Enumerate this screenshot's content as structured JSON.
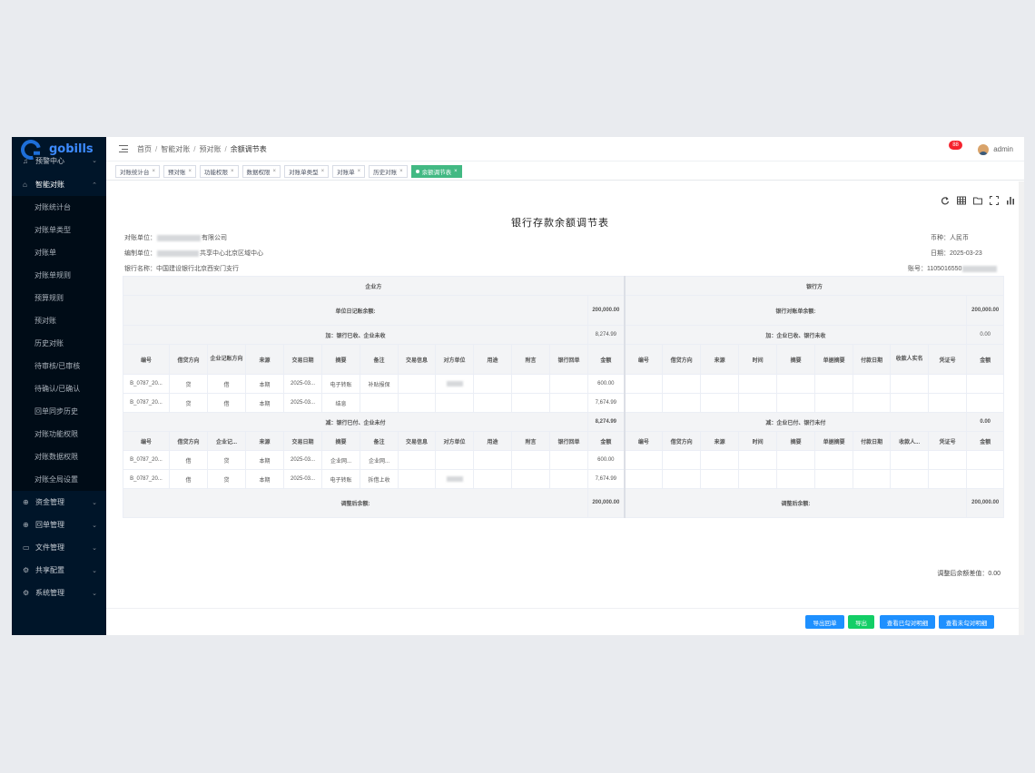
{
  "app": {
    "logo_text": "gobills"
  },
  "sidebar": {
    "first_item": {
      "label": "预警中心",
      "icon": "alert-icon"
    },
    "open_group": {
      "label": "智能对账",
      "icon": "bank-icon"
    },
    "sub_items": [
      "对账统计台",
      "对账单类型",
      "对账单",
      "对账单规则",
      "预算规则",
      "预对账",
      "历史对账",
      "待审核/已审核",
      "待确认/已确认",
      "回单同步历史",
      "对账功能权限",
      "对账数据权限",
      "对账全局设置"
    ],
    "bottom_groups": [
      {
        "label": "资金管理",
        "icon": "fund-icon"
      },
      {
        "label": "回单管理",
        "icon": "receipt-icon"
      },
      {
        "label": "文件管理",
        "icon": "file-icon"
      },
      {
        "label": "共享配置",
        "icon": "share-icon"
      },
      {
        "label": "系统管理",
        "icon": "settings-icon"
      }
    ]
  },
  "header": {
    "breadcrumb": [
      "首页",
      "智能对账",
      "预对账",
      "余额调节表"
    ],
    "notification_count": "88",
    "username": "admin"
  },
  "tabs": [
    "对账统计台",
    "预对账",
    "功能权限",
    "数据权限",
    "对账单类型",
    "对账单",
    "历史对账",
    "余额调节表"
  ],
  "report": {
    "title": "银行存款余额调节表",
    "unit_label": "对账单位：",
    "unit_suffix": "有限公司",
    "maker_label": "编制单位：",
    "maker_suffix": "共享中心北京区域中心",
    "bank_label": "银行名称：",
    "bank_name": "中国建设银行北京西安门支行",
    "currency": "币种：人民币",
    "date": "日期：2025-03-23",
    "account_label": "账号：",
    "account_prefix": "1105016550"
  },
  "table": {
    "enterprise_side": "企业方",
    "bank_side": "银行方",
    "unit_balance_label": "单位日记账余额:",
    "unit_balance_value": "200,000.00",
    "bank_balance_label": "银行对账单余额:",
    "bank_balance_value": "200,000.00",
    "add_left_label": "加：银行已收、企业未收",
    "add_left_value": "8,274.99",
    "add_right_label": "加：企业已收、银行未收",
    "add_right_value": "0.00",
    "less_left_label": "减：银行已付、企业未付",
    "less_left_value": "8,274.99",
    "less_right_label": "减：企业已付、银行未付",
    "less_right_value": "0.00",
    "adjusted_left_label": "调整后余额:",
    "adjusted_left_value": "200,000.00",
    "adjusted_right_label": "调整后余额:",
    "adjusted_right_value": "200,000.00",
    "left_cols_1": [
      "编号",
      "借贷方向",
      "企业记账方向",
      "来源",
      "交易日期",
      "摘要",
      "备注",
      "交易信息",
      "对方单位",
      "用途",
      "附言",
      "银行回单",
      "金额"
    ],
    "left_cols_2": [
      "编号",
      "借贷方向",
      "企业记...",
      "来源",
      "交易日期",
      "摘要",
      "备注",
      "交易信息",
      "对方单位",
      "用途",
      "附言",
      "银行回单",
      "金额"
    ],
    "right_cols_1": [
      "编号",
      "借贷方向",
      "来源",
      "时间",
      "摘要",
      "单据摘要",
      "付款日期",
      "收款人实名",
      "凭证号",
      "金额"
    ],
    "right_cols_2": [
      "编号",
      "借贷方向",
      "来源",
      "时间",
      "摘要",
      "单据摘要",
      "付款日期",
      "收款人...",
      "凭证号",
      "金额"
    ],
    "add_rows": [
      {
        "no": "B_0787_20...",
        "dir": "贷",
        "ent_dir": "借",
        "source": "本期",
        "date": "2025-03...",
        "summary": "电子转账",
        "remark": "补贴报保",
        "amount": "600.00"
      },
      {
        "no": "B_0787_20...",
        "dir": "贷",
        "ent_dir": "借",
        "source": "本期",
        "date": "2025-03...",
        "summary": "结息",
        "remark": "",
        "amount": "7,674.99"
      }
    ],
    "less_rows": [
      {
        "no": "B_0787_20...",
        "dir": "借",
        "ent_dir": "贷",
        "source": "本期",
        "date": "2025-03...",
        "summary": "企业网...",
        "remark": "企业网...",
        "amount": "600.00"
      },
      {
        "no": "B_0787_20...",
        "dir": "借",
        "ent_dir": "贷",
        "source": "本期",
        "date": "2025-03...",
        "summary": "电子转账",
        "remark": "拆借上收",
        "amount": "7,674.99"
      }
    ]
  },
  "diff": {
    "label": "调整后余额差值：",
    "value": "0.00"
  },
  "buttons": [
    "导出回单",
    "导出",
    "查看已勾对明细",
    "查看未勾对明细"
  ],
  "colors": {
    "sidebar_bg": "#001529",
    "active_tab": "#42b983",
    "primary": "#1e90ff",
    "success": "#13ce66",
    "badge": "#f5222d"
  }
}
